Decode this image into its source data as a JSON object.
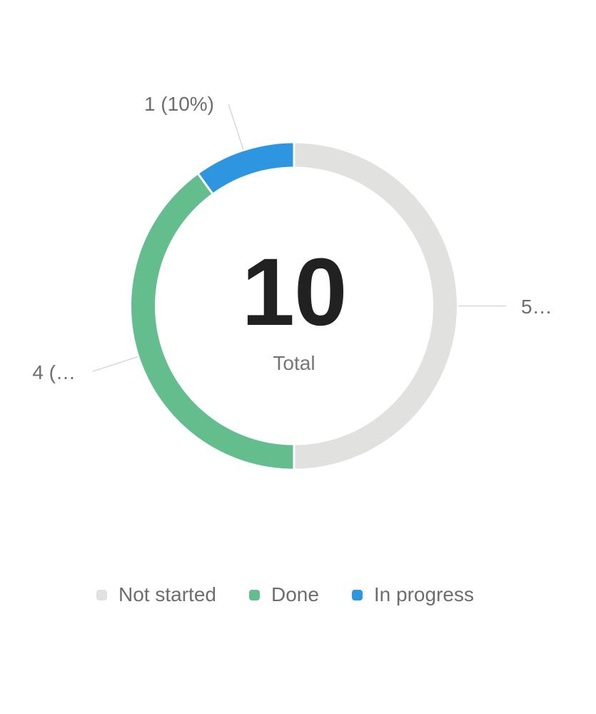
{
  "page": {
    "background": "#ffffff"
  },
  "chart_data": {
    "type": "pie",
    "donut": true,
    "center_value": "10",
    "center_label": "Total",
    "total": 10,
    "start_angle": "top",
    "direction": "clockwise",
    "series": [
      {
        "name": "Not started",
        "value": 5,
        "percent": 50,
        "color": "#E1E1DF",
        "label": "5…"
      },
      {
        "name": "Done",
        "value": 4,
        "percent": 40,
        "color": "#63BD8C",
        "label": "4 (…"
      },
      {
        "name": "In progress",
        "value": 1,
        "percent": 10,
        "color": "#2E96E0",
        "label": "1 (10%)"
      }
    ],
    "legend_position": "bottom",
    "label_line_color": "#D8D8D8",
    "separator_color": "#FFFFFF"
  }
}
